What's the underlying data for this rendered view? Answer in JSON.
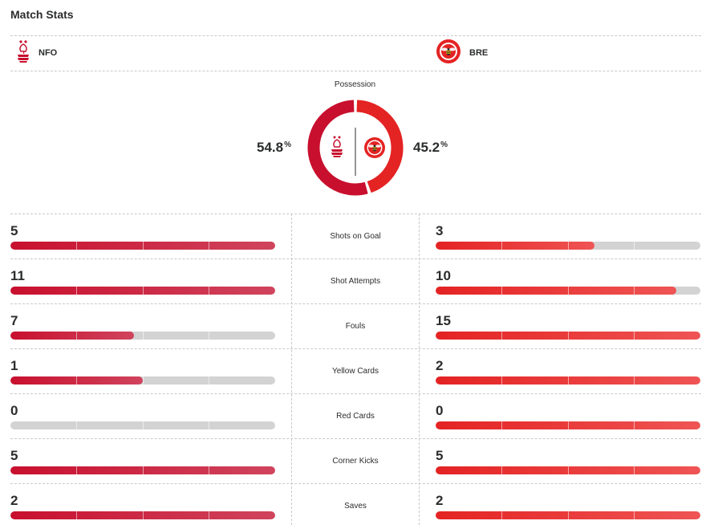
{
  "header": {
    "title": "Match Stats"
  },
  "teams": {
    "home": {
      "abbr": "NFO",
      "color": "#c8102e"
    },
    "away": {
      "abbr": "BRE",
      "color": "#e42323"
    }
  },
  "possession": {
    "label": "Possession",
    "home_value": "54.8",
    "away_value": "45.2",
    "unit": "%",
    "home_fraction": 0.548,
    "away_fraction": 0.452
  },
  "stats": [
    {
      "label": "Shots on Goal",
      "home": "5",
      "away": "3",
      "home_fill": 1.0,
      "away_fill": 0.6
    },
    {
      "label": "Shot Attempts",
      "home": "11",
      "away": "10",
      "home_fill": 1.0,
      "away_fill": 0.909
    },
    {
      "label": "Fouls",
      "home": "7",
      "away": "15",
      "home_fill": 0.467,
      "away_fill": 1.0
    },
    {
      "label": "Yellow Cards",
      "home": "1",
      "away": "2",
      "home_fill": 0.5,
      "away_fill": 1.0
    },
    {
      "label": "Red Cards",
      "home": "0",
      "away": "0",
      "home_fill": 0.0,
      "away_fill": 1.0
    },
    {
      "label": "Corner Kicks",
      "home": "5",
      "away": "5",
      "home_fill": 1.0,
      "away_fill": 1.0
    },
    {
      "label": "Saves",
      "home": "2",
      "away": "2",
      "home_fill": 1.0,
      "away_fill": 1.0
    }
  ]
}
